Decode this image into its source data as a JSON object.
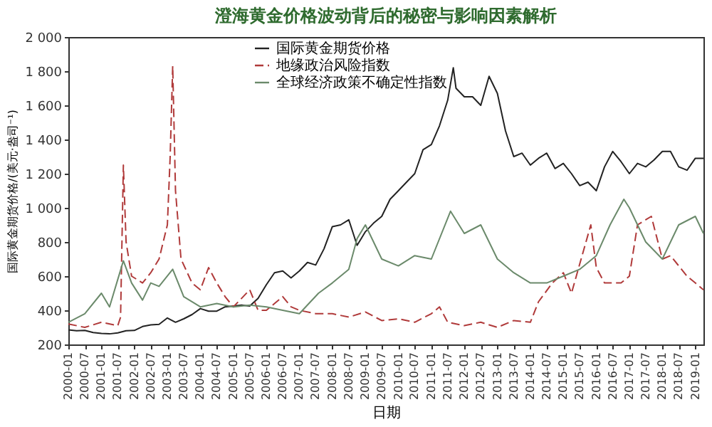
{
  "chart_data": {
    "type": "line",
    "title": "澄海黄金价格波动背后的秘密与影响因素解析",
    "xlabel": "日期",
    "ylabel": "国际黄金期货价格/(美元·盎司⁻¹)",
    "xlim": [
      "2000-01",
      "2019-04"
    ],
    "xticks": [
      "2000-01",
      "2000-07",
      "2001-01",
      "2001-07",
      "2002-01",
      "2002-07",
      "2003-01",
      "2003-07",
      "2004-01",
      "2004-07",
      "2005-01",
      "2005-07",
      "2006-01",
      "2006-07",
      "2007-01",
      "2007-07",
      "2008-01",
      "2008-07",
      "2009-01",
      "2009-07",
      "2010-01",
      "2010-07",
      "2011-01",
      "2011-07",
      "2012-01",
      "2012-07",
      "2013-01",
      "2013-07",
      "2014-01",
      "2014-07",
      "2015-01",
      "2015-07",
      "2016-01",
      "2016-07",
      "2017-01",
      "2017-07",
      "2018-01",
      "2018-07",
      "2019-01"
    ],
    "ylim": [
      200,
      2000
    ],
    "yticks": [
      200,
      400,
      600,
      800,
      {
        "value": 1000,
        "label": "1 000"
      },
      {
        "value": 1200,
        "label": "1 200"
      },
      {
        "value": 1400,
        "label": "1 400"
      },
      {
        "value": 1600,
        "label": "1 600"
      },
      {
        "value": 1800,
        "label": "1 800"
      },
      {
        "value": 2000,
        "label": "2 000"
      }
    ],
    "grid": false,
    "legend": "top",
    "marker": "none",
    "series": [
      {
        "name": "国际黄金期货价格",
        "color": "#222222",
        "line_style": "solid",
        "x": [
          "2000-01",
          "2000-04",
          "2000-07",
          "2000-10",
          "2001-01",
          "2001-04",
          "2001-07",
          "2001-10",
          "2002-01",
          "2002-04",
          "2002-07",
          "2002-10",
          "2003-01",
          "2003-04",
          "2003-07",
          "2003-10",
          "2004-01",
          "2004-04",
          "2004-07",
          "2004-10",
          "2005-01",
          "2005-04",
          "2005-07",
          "2005-10",
          "2006-01",
          "2006-04",
          "2006-07",
          "2006-10",
          "2007-01",
          "2007-04",
          "2007-07",
          "2007-10",
          "2008-01",
          "2008-04",
          "2008-07",
          "2008-10",
          "2009-01",
          "2009-04",
          "2009-07",
          "2009-10",
          "2010-01",
          "2010-04",
          "2010-07",
          "2010-10",
          "2011-01",
          "2011-04",
          "2011-07",
          "2011-09",
          "2011-10",
          "2012-01",
          "2012-04",
          "2012-07",
          "2012-10",
          "2013-01",
          "2013-04",
          "2013-07",
          "2013-10",
          "2014-01",
          "2014-04",
          "2014-07",
          "2014-10",
          "2015-01",
          "2015-04",
          "2015-07",
          "2015-10",
          "2016-01",
          "2016-04",
          "2016-07",
          "2016-10",
          "2017-01",
          "2017-04",
          "2017-07",
          "2017-10",
          "2018-01",
          "2018-04",
          "2018-07",
          "2018-10",
          "2019-01",
          "2019-04"
        ],
        "values": [
          285,
          280,
          282,
          270,
          265,
          262,
          268,
          280,
          282,
          305,
          315,
          318,
          355,
          330,
          350,
          375,
          410,
          395,
          395,
          420,
          425,
          430,
          425,
          470,
          550,
          620,
          630,
          590,
          630,
          680,
          665,
          760,
          890,
          900,
          930,
          780,
          860,
          910,
          950,
          1050,
          1100,
          1150,
          1200,
          1340,
          1370,
          1480,
          1630,
          1820,
          1700,
          1650,
          1650,
          1600,
          1770,
          1670,
          1450,
          1300,
          1320,
          1250,
          1290,
          1320,
          1230,
          1260,
          1200,
          1130,
          1150,
          1100,
          1240,
          1330,
          1270,
          1200,
          1260,
          1240,
          1280,
          1330,
          1330,
          1240,
          1220,
          1290,
          1290
        ]
      },
      {
        "name": "地缘政治风险指数",
        "color": "#b03a3a",
        "line_style": "dashed",
        "x": [
          "2000-01",
          "2000-07",
          "2001-01",
          "2001-07",
          "2001-08",
          "2001-09",
          "2001-10",
          "2001-12",
          "2002-04",
          "2002-07",
          "2002-10",
          "2003-01",
          "2003-02",
          "2003-03",
          "2003-04",
          "2003-06",
          "2003-10",
          "2004-01",
          "2004-04",
          "2004-07",
          "2004-10",
          "2005-01",
          "2005-07",
          "2005-10",
          "2006-01",
          "2006-07",
          "2006-10",
          "2007-01",
          "2007-07",
          "2008-01",
          "2008-07",
          "2009-01",
          "2009-07",
          "2010-01",
          "2010-07",
          "2011-01",
          "2011-04",
          "2011-07",
          "2012-01",
          "2012-07",
          "2013-01",
          "2013-07",
          "2014-01",
          "2014-04",
          "2014-09",
          "2015-01",
          "2015-04",
          "2015-11",
          "2016-01",
          "2016-04",
          "2016-10",
          "2017-01",
          "2017-04",
          "2017-09",
          "2018-01",
          "2018-04",
          "2018-10",
          "2019-01",
          "2019-04"
        ],
        "values": [
          320,
          300,
          330,
          310,
          360,
          1250,
          800,
          600,
          560,
          620,
          700,
          900,
          1300,
          1830,
          1100,
          700,
          560,
          520,
          650,
          560,
          480,
          420,
          520,
          400,
          400,
          480,
          420,
          400,
          380,
          380,
          360,
          390,
          340,
          350,
          330,
          380,
          420,
          330,
          310,
          330,
          300,
          340,
          330,
          450,
          560,
          620,
          500,
          900,
          650,
          560,
          560,
          600,
          900,
          950,
          700,
          720,
          600,
          560,
          520
        ]
      },
      {
        "name": "全球经济政策不确定性指数",
        "color": "#6b8a6b",
        "line_style": "solid",
        "x": [
          "2000-01",
          "2000-07",
          "2001-01",
          "2001-04",
          "2001-09",
          "2001-12",
          "2002-04",
          "2002-07",
          "2002-10",
          "2003-03",
          "2003-07",
          "2004-01",
          "2004-07",
          "2005-01",
          "2005-07",
          "2006-01",
          "2006-07",
          "2007-01",
          "2007-08",
          "2008-01",
          "2008-07",
          "2008-10",
          "2009-01",
          "2009-07",
          "2010-01",
          "2010-07",
          "2011-01",
          "2011-08",
          "2012-01",
          "2012-07",
          "2013-01",
          "2013-07",
          "2014-01",
          "2014-07",
          "2015-01",
          "2015-07",
          "2016-01",
          "2016-06",
          "2016-11",
          "2017-01",
          "2017-07",
          "2018-01",
          "2018-07",
          "2019-01",
          "2019-04"
        ],
        "values": [
          330,
          380,
          500,
          420,
          690,
          560,
          460,
          560,
          540,
          640,
          480,
          420,
          440,
          420,
          430,
          420,
          400,
          380,
          500,
          560,
          640,
          820,
          900,
          700,
          660,
          720,
          700,
          980,
          850,
          900,
          700,
          620,
          560,
          560,
          600,
          640,
          720,
          900,
          1050,
          1000,
          800,
          700,
          900,
          950,
          850
        ]
      }
    ]
  }
}
